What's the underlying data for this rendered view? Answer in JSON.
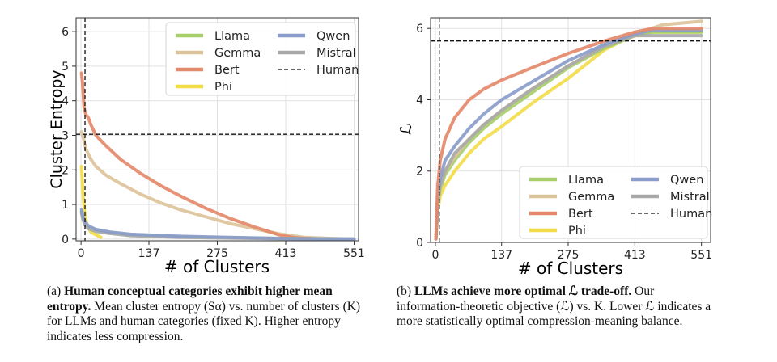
{
  "colors": {
    "Llama": "#a6cf6a",
    "Gemma": "#dcc39a",
    "Bert": "#e4896a",
    "Phi": "#f2dc4a",
    "Qwen": "#8a9ccb",
    "Mistral": "#a9a9a9",
    "Human": "#111111"
  },
  "chart_data": [
    {
      "type": "line",
      "xlabel": "# of Clusters",
      "ylabel": "Cluster Entropy",
      "xlim": [
        -10,
        560
      ],
      "ylim": [
        -0.05,
        6.4
      ],
      "xticks": [
        0,
        137,
        275,
        413,
        551
      ],
      "yticks": [
        0,
        1,
        2,
        3,
        4,
        5,
        6
      ],
      "grid": true,
      "legend_position": "top-right",
      "legend_columns": 2,
      "legend": [
        "Llama",
        "Gemma",
        "Bert",
        "Phi",
        "Qwen",
        "Mistral",
        "Human"
      ],
      "series": [
        {
          "name": "Gemma",
          "x": [
            1,
            5,
            10,
            20,
            30,
            50,
            80,
            120,
            160,
            200,
            250,
            300,
            350,
            400,
            450,
            500,
            551
          ],
          "y": [
            3.1,
            2.9,
            2.6,
            2.3,
            2.1,
            1.85,
            1.6,
            1.3,
            1.05,
            0.85,
            0.65,
            0.45,
            0.3,
            0.15,
            0.05,
            0.02,
            0.0
          ]
        },
        {
          "name": "Bert",
          "x": [
            1,
            3,
            6,
            10,
            15,
            20,
            30,
            50,
            80,
            120,
            160,
            200,
            250,
            300,
            350,
            400,
            430,
            480,
            551
          ],
          "y": [
            4.8,
            4.5,
            3.8,
            3.6,
            3.5,
            3.3,
            3.0,
            2.7,
            2.3,
            1.9,
            1.55,
            1.25,
            0.9,
            0.6,
            0.35,
            0.12,
            0.04,
            0.0,
            0.0
          ]
        },
        {
          "name": "Llama",
          "x": [
            1,
            4,
            8,
            15,
            30,
            60,
            100,
            200,
            300,
            400,
            551
          ],
          "y": [
            0.8,
            0.6,
            0.45,
            0.35,
            0.25,
            0.18,
            0.12,
            0.07,
            0.04,
            0.02,
            0.0
          ]
        },
        {
          "name": "Phi",
          "x": [
            1,
            3,
            5,
            8,
            12,
            20,
            40
          ],
          "y": [
            2.1,
            1.5,
            1.1,
            0.7,
            0.4,
            0.2,
            0.05
          ]
        },
        {
          "name": "Mistral",
          "x": [
            1,
            4,
            8,
            15,
            30,
            60,
            100,
            200,
            300,
            400,
            551
          ],
          "y": [
            0.75,
            0.55,
            0.4,
            0.3,
            0.22,
            0.16,
            0.1,
            0.05,
            0.03,
            0.01,
            0.0
          ]
        },
        {
          "name": "Qwen",
          "x": [
            1,
            4,
            8,
            15,
            30,
            60,
            100,
            200,
            300,
            400,
            551
          ],
          "y": [
            0.85,
            0.65,
            0.5,
            0.38,
            0.28,
            0.2,
            0.14,
            0.08,
            0.05,
            0.02,
            0.0
          ]
        }
      ],
      "reference_lines": [
        {
          "name": "Human",
          "orientation": "horizontal",
          "value": 3.03
        },
        {
          "name": "Human",
          "orientation": "vertical",
          "value": 8
        }
      ]
    },
    {
      "type": "line",
      "xlabel": "# of Clusters",
      "ylabel": "ℒ",
      "xlim": [
        -10,
        570
      ],
      "ylim": [
        0,
        6.3
      ],
      "xticks": [
        0,
        137,
        275,
        413,
        551
      ],
      "yticks": [
        0,
        2,
        4,
        6
      ],
      "grid": true,
      "legend_position": "lower-right",
      "legend_columns": 2,
      "legend": [
        "Llama",
        "Gemma",
        "Bert",
        "Phi",
        "Qwen",
        "Mistral",
        "Human"
      ],
      "series": [
        {
          "name": "Phi",
          "x": [
            1,
            5,
            10,
            20,
            40,
            70,
            100,
            137,
            200,
            275,
            350,
            400,
            413,
            450,
            551
          ],
          "y": [
            0.1,
            0.9,
            1.3,
            1.6,
            2.0,
            2.5,
            2.9,
            3.25,
            3.9,
            4.6,
            5.4,
            5.75,
            5.85,
            5.9,
            5.9
          ]
        },
        {
          "name": "Llama",
          "x": [
            1,
            5,
            10,
            20,
            40,
            70,
            100,
            137,
            200,
            275,
            350,
            413,
            450,
            551
          ],
          "y": [
            0.1,
            1.1,
            1.5,
            1.9,
            2.3,
            2.8,
            3.2,
            3.6,
            4.2,
            4.9,
            5.45,
            5.8,
            5.9,
            5.9
          ]
        },
        {
          "name": "Gemma",
          "x": [
            1,
            5,
            10,
            20,
            40,
            70,
            100,
            137,
            200,
            275,
            350,
            413,
            470,
            551
          ],
          "y": [
            0.1,
            1.2,
            1.6,
            2.0,
            2.4,
            2.9,
            3.3,
            3.7,
            4.3,
            4.95,
            5.5,
            5.85,
            6.1,
            6.2
          ]
        },
        {
          "name": "Mistral",
          "x": [
            1,
            5,
            10,
            20,
            40,
            70,
            100,
            137,
            200,
            275,
            350,
            413,
            450,
            551
          ],
          "y": [
            0.1,
            1.1,
            1.6,
            2.0,
            2.5,
            2.9,
            3.3,
            3.7,
            4.3,
            4.95,
            5.5,
            5.8,
            5.8,
            5.8
          ]
        },
        {
          "name": "Qwen",
          "x": [
            1,
            5,
            10,
            20,
            40,
            70,
            100,
            137,
            200,
            275,
            350,
            413,
            450,
            551
          ],
          "y": [
            0.1,
            1.3,
            1.8,
            2.3,
            2.7,
            3.2,
            3.6,
            4.0,
            4.5,
            5.1,
            5.55,
            5.85,
            5.95,
            5.95
          ]
        },
        {
          "name": "Bert",
          "x": [
            1,
            5,
            10,
            20,
            40,
            70,
            100,
            137,
            200,
            275,
            350,
            413,
            450,
            551
          ],
          "y": [
            0.1,
            1.6,
            2.3,
            2.9,
            3.5,
            4.0,
            4.3,
            4.55,
            4.9,
            5.3,
            5.65,
            5.9,
            6.0,
            6.0
          ]
        }
      ],
      "reference_lines": [
        {
          "name": "Human",
          "orientation": "horizontal",
          "value": 5.65
        },
        {
          "name": "Human",
          "orientation": "vertical",
          "value": 8
        }
      ]
    }
  ],
  "captions": {
    "left_label": "(a)",
    "left_bold": "Human conceptual categories exhibit higher mean entropy.",
    "left_text": " Mean cluster entropy (Sα) vs. number of clusters (K) for LLMs and human categories (fixed K). Higher entropy indicates less compression.",
    "right_label": "(b)",
    "right_bold": "LLMs achieve more optimal ℒ trade-off.",
    "right_text": " Our information-theoretic objective (ℒ) vs. K. Lower ℒ indicates a more statistically optimal compression-meaning balance."
  }
}
